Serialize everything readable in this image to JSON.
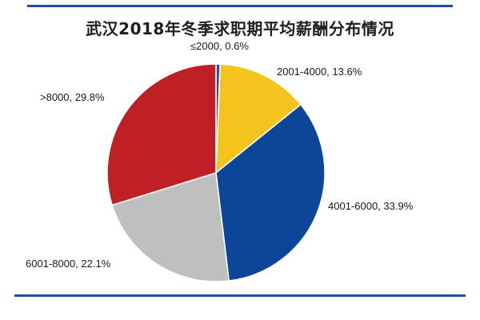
{
  "chart_data": {
    "type": "pie",
    "title": "武汉2018年冬季求职期平均薪酬分布情况",
    "slices": [
      {
        "label": "≤2000, 0.6%",
        "category": "≤2000",
        "value": 0.6,
        "color": "#1f4e9a"
      },
      {
        "label": "2001-4000, 13.6%",
        "category": "2001-4000",
        "value": 13.6,
        "color": "#f2c41c"
      },
      {
        "label": "4001-6000, 33.9%",
        "category": "4001-6000",
        "value": 33.9,
        "color": "#0b4698"
      },
      {
        "label": "6001-8000, 22.1%",
        "category": "6001-8000",
        "value": 22.1,
        "color": "#bfbfbf"
      },
      {
        "label": ">8000, 29.8%",
        "category": ">8000",
        "value": 29.8,
        "color": "#bf2026"
      }
    ]
  }
}
